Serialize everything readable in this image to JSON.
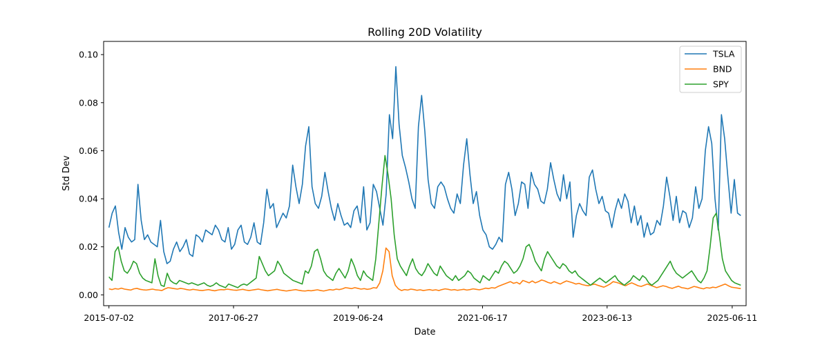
{
  "chart_data": {
    "type": "line",
    "title": "Rolling 20D Volatility",
    "xlabel": "Date",
    "ylabel": "Std Dev",
    "x_start": "2015-07-02",
    "x_end": "2025-07-31",
    "xlim": [
      "2015-06-01",
      "2025-08-31"
    ],
    "ylim": [
      -0.0045,
      0.1055
    ],
    "x_ticks": [
      "2015-07-02",
      "2017-06-27",
      "2019-06-24",
      "2021-06-17",
      "2023-06-13",
      "2025-06-11"
    ],
    "y_ticks": [
      0.0,
      0.02,
      0.04,
      0.06,
      0.08,
      0.1
    ],
    "y_tick_labels": [
      "0.00",
      "0.02",
      "0.04",
      "0.06",
      "0.08",
      "0.10"
    ],
    "grid": false,
    "legend": {
      "position": "top-right"
    },
    "series": [
      {
        "name": "TSLA",
        "color": "#1f77b4",
        "values": [
          0.028,
          0.034,
          0.037,
          0.026,
          0.019,
          0.028,
          0.024,
          0.022,
          0.023,
          0.046,
          0.031,
          0.023,
          0.025,
          0.022,
          0.021,
          0.02,
          0.031,
          0.018,
          0.013,
          0.014,
          0.019,
          0.022,
          0.018,
          0.02,
          0.023,
          0.017,
          0.016,
          0.025,
          0.024,
          0.022,
          0.027,
          0.026,
          0.025,
          0.029,
          0.027,
          0.023,
          0.022,
          0.028,
          0.019,
          0.021,
          0.027,
          0.029,
          0.022,
          0.021,
          0.024,
          0.03,
          0.022,
          0.021,
          0.03,
          0.044,
          0.036,
          0.038,
          0.028,
          0.031,
          0.034,
          0.032,
          0.037,
          0.054,
          0.045,
          0.038,
          0.046,
          0.062,
          0.07,
          0.045,
          0.038,
          0.036,
          0.041,
          0.051,
          0.043,
          0.036,
          0.031,
          0.038,
          0.033,
          0.029,
          0.03,
          0.028,
          0.035,
          0.037,
          0.03,
          0.045,
          0.027,
          0.03,
          0.046,
          0.043,
          0.036,
          0.029,
          0.042,
          0.075,
          0.065,
          0.095,
          0.071,
          0.058,
          0.053,
          0.047,
          0.04,
          0.036,
          0.07,
          0.083,
          0.068,
          0.048,
          0.038,
          0.036,
          0.045,
          0.047,
          0.045,
          0.04,
          0.036,
          0.034,
          0.042,
          0.038,
          0.054,
          0.065,
          0.05,
          0.038,
          0.043,
          0.033,
          0.027,
          0.025,
          0.02,
          0.019,
          0.021,
          0.024,
          0.022,
          0.046,
          0.051,
          0.044,
          0.033,
          0.038,
          0.047,
          0.046,
          0.036,
          0.051,
          0.046,
          0.044,
          0.039,
          0.038,
          0.044,
          0.055,
          0.048,
          0.042,
          0.039,
          0.05,
          0.04,
          0.047,
          0.024,
          0.033,
          0.038,
          0.035,
          0.033,
          0.049,
          0.052,
          0.044,
          0.038,
          0.041,
          0.035,
          0.034,
          0.028,
          0.035,
          0.04,
          0.036,
          0.042,
          0.039,
          0.03,
          0.037,
          0.029,
          0.033,
          0.024,
          0.03,
          0.025,
          0.026,
          0.031,
          0.029,
          0.037,
          0.049,
          0.041,
          0.031,
          0.041,
          0.03,
          0.035,
          0.034,
          0.028,
          0.032,
          0.045,
          0.036,
          0.04,
          0.06,
          0.07,
          0.063,
          0.04,
          0.027,
          0.075,
          0.065,
          0.049,
          0.034,
          0.048,
          0.034,
          0.033
        ]
      },
      {
        "name": "BND",
        "color": "#ff7f0e",
        "values": [
          0.0025,
          0.0022,
          0.0026,
          0.0024,
          0.0028,
          0.0024,
          0.0022,
          0.002,
          0.0025,
          0.0027,
          0.0023,
          0.0021,
          0.002,
          0.0022,
          0.0024,
          0.0021,
          0.002,
          0.0018,
          0.0025,
          0.003,
          0.0028,
          0.0026,
          0.0024,
          0.0027,
          0.0025,
          0.0022,
          0.002,
          0.0023,
          0.0021,
          0.0019,
          0.0018,
          0.002,
          0.0022,
          0.0019,
          0.0017,
          0.002,
          0.0022,
          0.0021,
          0.0024,
          0.0022,
          0.002,
          0.0019,
          0.0021,
          0.0023,
          0.002,
          0.0018,
          0.002,
          0.0022,
          0.0024,
          0.0021,
          0.0019,
          0.0017,
          0.0019,
          0.0021,
          0.0023,
          0.002,
          0.0018,
          0.0016,
          0.0018,
          0.002,
          0.0022,
          0.0019,
          0.0017,
          0.0016,
          0.0018,
          0.0017,
          0.0019,
          0.0021,
          0.0018,
          0.0016,
          0.0019,
          0.0022,
          0.002,
          0.0024,
          0.0022,
          0.0025,
          0.003,
          0.0028,
          0.0026,
          0.003,
          0.0027,
          0.0024,
          0.0026,
          0.0023,
          0.0025,
          0.003,
          0.0028,
          0.005,
          0.01,
          0.0195,
          0.018,
          0.008,
          0.004,
          0.0025,
          0.0018,
          0.0022,
          0.002,
          0.0024,
          0.0022,
          0.0019,
          0.0021,
          0.0018,
          0.002,
          0.0022,
          0.0019,
          0.0021,
          0.0018,
          0.0022,
          0.0025,
          0.0023,
          0.002,
          0.0022,
          0.0019,
          0.0021,
          0.0023,
          0.002,
          0.0022,
          0.0025,
          0.0023,
          0.0021,
          0.0024,
          0.0028,
          0.0026,
          0.003,
          0.0028,
          0.0035,
          0.004,
          0.0045,
          0.005,
          0.0055,
          0.0048,
          0.0052,
          0.0045,
          0.006,
          0.0055,
          0.005,
          0.0058,
          0.005,
          0.0055,
          0.0062,
          0.0058,
          0.0052,
          0.0048,
          0.0055,
          0.005,
          0.0045,
          0.0052,
          0.0058,
          0.0054,
          0.005,
          0.0045,
          0.0048,
          0.0043,
          0.004,
          0.0038,
          0.0042,
          0.0045,
          0.004,
          0.0036,
          0.0032,
          0.0038,
          0.0045,
          0.0055,
          0.0052,
          0.0048,
          0.0042,
          0.0038,
          0.0045,
          0.005,
          0.0044,
          0.0038,
          0.0035,
          0.004,
          0.0045,
          0.004,
          0.0035,
          0.003,
          0.0034,
          0.0038,
          0.0035,
          0.003,
          0.0027,
          0.0032,
          0.0036,
          0.003,
          0.0028,
          0.0025,
          0.003,
          0.0035,
          0.0032,
          0.0028,
          0.0025,
          0.003,
          0.0028,
          0.0032,
          0.003,
          0.0035,
          0.004,
          0.0045,
          0.0038,
          0.0032,
          0.003,
          0.0028,
          0.0026
        ]
      },
      {
        "name": "SPY",
        "color": "#2ca02c",
        "values": [
          0.0075,
          0.006,
          0.018,
          0.02,
          0.014,
          0.01,
          0.009,
          0.011,
          0.014,
          0.013,
          0.009,
          0.007,
          0.006,
          0.0055,
          0.005,
          0.015,
          0.008,
          0.004,
          0.0035,
          0.009,
          0.006,
          0.005,
          0.0045,
          0.006,
          0.0055,
          0.005,
          0.0045,
          0.005,
          0.0045,
          0.004,
          0.0045,
          0.005,
          0.004,
          0.0035,
          0.004,
          0.005,
          0.004,
          0.0035,
          0.003,
          0.0045,
          0.004,
          0.0035,
          0.003,
          0.004,
          0.0045,
          0.004,
          0.005,
          0.006,
          0.007,
          0.016,
          0.013,
          0.01,
          0.008,
          0.009,
          0.01,
          0.014,
          0.012,
          0.009,
          0.008,
          0.007,
          0.006,
          0.0055,
          0.005,
          0.0045,
          0.01,
          0.009,
          0.012,
          0.018,
          0.019,
          0.015,
          0.01,
          0.008,
          0.007,
          0.006,
          0.009,
          0.011,
          0.009,
          0.007,
          0.01,
          0.015,
          0.012,
          0.008,
          0.006,
          0.01,
          0.008,
          0.007,
          0.006,
          0.015,
          0.03,
          0.045,
          0.058,
          0.05,
          0.04,
          0.025,
          0.015,
          0.012,
          0.01,
          0.008,
          0.012,
          0.015,
          0.011,
          0.009,
          0.008,
          0.01,
          0.013,
          0.011,
          0.009,
          0.008,
          0.012,
          0.01,
          0.008,
          0.007,
          0.006,
          0.008,
          0.006,
          0.007,
          0.008,
          0.01,
          0.009,
          0.007,
          0.006,
          0.005,
          0.008,
          0.007,
          0.006,
          0.008,
          0.01,
          0.009,
          0.012,
          0.014,
          0.013,
          0.011,
          0.009,
          0.01,
          0.012,
          0.015,
          0.02,
          0.021,
          0.018,
          0.014,
          0.012,
          0.01,
          0.015,
          0.018,
          0.016,
          0.014,
          0.012,
          0.011,
          0.013,
          0.012,
          0.01,
          0.009,
          0.01,
          0.008,
          0.007,
          0.006,
          0.005,
          0.004,
          0.005,
          0.006,
          0.007,
          0.006,
          0.005,
          0.006,
          0.007,
          0.008,
          0.006,
          0.005,
          0.004,
          0.005,
          0.006,
          0.008,
          0.007,
          0.006,
          0.008,
          0.007,
          0.005,
          0.004,
          0.005,
          0.006,
          0.008,
          0.01,
          0.012,
          0.014,
          0.011,
          0.009,
          0.008,
          0.007,
          0.008,
          0.009,
          0.01,
          0.008,
          0.006,
          0.005,
          0.007,
          0.01,
          0.02,
          0.032,
          0.034,
          0.025,
          0.015,
          0.01,
          0.008,
          0.006,
          0.005,
          0.0045,
          0.004
        ]
      }
    ]
  }
}
